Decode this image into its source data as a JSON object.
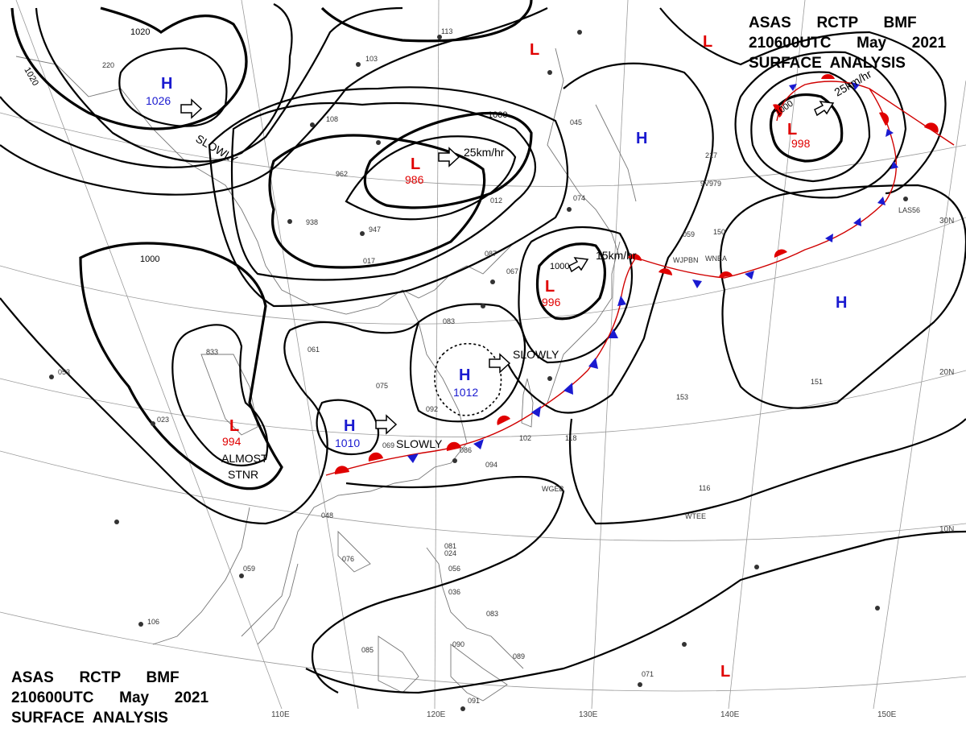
{
  "header": {
    "top": [
      "ASAS      RCTP      BMF",
      "210600UTC      May      2021",
      "SURFACE  ANALYSIS"
    ],
    "bottom": [
      "ASAS      RCTP      BMF",
      "210600UTC      May      2021",
      "SURFACE  ANALYSIS"
    ]
  },
  "colors": {
    "high": "#1a1ad0",
    "low": "#e00000",
    "isobar": "#000000"
  },
  "pressure_systems": [
    {
      "type": "H",
      "pressure": "1026"
    },
    {
      "type": "L",
      "pressure": "986"
    },
    {
      "type": "L",
      "pressure": "994"
    },
    {
      "type": "H",
      "pressure": "1010"
    },
    {
      "type": "H",
      "pressure": "1012"
    },
    {
      "type": "L",
      "pressure": "996"
    },
    {
      "type": "L",
      "pressure": "998"
    },
    {
      "type": "H",
      "pressure": ""
    },
    {
      "type": "H",
      "pressure": ""
    },
    {
      "type": "L",
      "pressure": ""
    },
    {
      "type": "L",
      "pressure": ""
    },
    {
      "type": "L",
      "pressure": ""
    }
  ],
  "isobar_labels": [
    "1020",
    "1020",
    "1000",
    "1000",
    "1000",
    "1000"
  ],
  "motions": [
    "SLOWLY",
    "25km/hr",
    "SLOWLY",
    "SLOWLY",
    "15km/hr",
    "25km/hr"
  ],
  "stationary_note": [
    "ALMOST",
    "STNR"
  ],
  "longitudes": [
    "110E",
    "120E",
    "130E",
    "140E",
    "150E"
  ],
  "latitudes": [
    "30N",
    "20N",
    "10N"
  ],
  "station_samples": [
    "113",
    "220",
    "103",
    "108",
    "962",
    "938",
    "947",
    "017",
    "012",
    "074",
    "083",
    "833",
    "053",
    "023",
    "061",
    "075",
    "092",
    "069",
    "086",
    "094",
    "048",
    "076",
    "106",
    "059",
    "085",
    "090",
    "089",
    "091",
    "071",
    "083",
    "102",
    "118",
    "116",
    "153",
    "151",
    "217",
    "059",
    "150",
    "045",
    "081",
    "024",
    "056",
    "036",
    "067",
    "087"
  ],
  "station_ids": [
    "LAS56",
    "WJPBN",
    "WNBA",
    "WTEE",
    "WGEB",
    "9V979"
  ]
}
